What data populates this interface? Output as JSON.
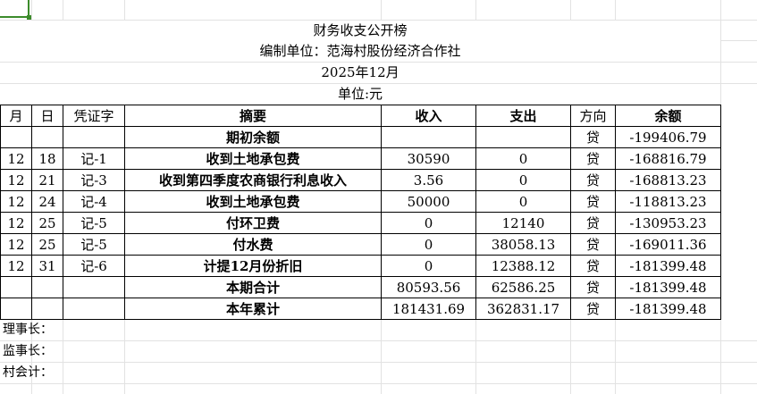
{
  "title": "财务收支公开榜",
  "unit_org": "编制单位：范海村股份经济合作社",
  "period": "2025年12月",
  "currency_unit": "单位:元",
  "headers": [
    "月",
    "日",
    "凭证字",
    "摘要",
    "收入",
    "支出",
    "方向",
    "余额"
  ],
  "rows": [
    [
      "",
      "",
      "",
      "期初余额",
      "",
      "",
      "贷",
      "-199406.79"
    ],
    [
      "12",
      "18",
      "记-1",
      "收到土地承包费",
      "30590",
      "0",
      "贷",
      "-168816.79"
    ],
    [
      "12",
      "21",
      "记-3",
      "收到第四季度农商银行利息收入",
      "3.56",
      "0",
      "贷",
      "-168813.23"
    ],
    [
      "12",
      "24",
      "记-4",
      "收到土地承包费",
      "50000",
      "0",
      "贷",
      "-118813.23"
    ],
    [
      "12",
      "25",
      "记-5",
      "付环卫费",
      "0",
      "12140",
      "贷",
      "-130953.23"
    ],
    [
      "12",
      "25",
      "记-5",
      "付水费",
      "0",
      "38058.13",
      "贷",
      "-169011.36"
    ],
    [
      "12",
      "31",
      "记-6",
      "计提12月份折旧",
      "0",
      "12388.12",
      "贷",
      "-181399.48"
    ],
    [
      "",
      "",
      "",
      "本期合计",
      "80593.56",
      "62586.25",
      "贷",
      "-181399.48"
    ],
    [
      "",
      "",
      "",
      "本年累计",
      "181431.69",
      "362831.17",
      "贷",
      "-181399.48"
    ]
  ],
  "signatures": [
    "理事长：",
    "监事长：",
    "村会计："
  ],
  "selection_color": "#3c8b2b"
}
